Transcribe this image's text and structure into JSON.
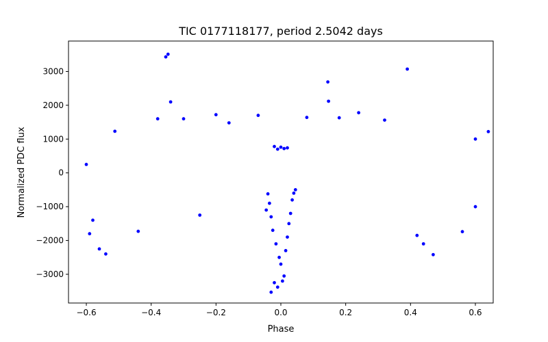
{
  "chart_data": {
    "type": "scatter",
    "title": "TIC 0177118177, period 2.5042 days",
    "xlabel": "Phase",
    "ylabel": "Normalized PDC flux",
    "xlim": [
      -0.655,
      0.655
    ],
    "ylim": [
      -3850,
      3900
    ],
    "x_ticks": [
      -0.6,
      -0.4,
      -0.2,
      0.0,
      0.2,
      0.4,
      0.6
    ],
    "x_tick_labels": [
      "−0.6",
      "−0.4",
      "−0.2",
      "0.0",
      "0.2",
      "0.4",
      "0.6"
    ],
    "y_ticks": [
      -3000,
      -2000,
      -1000,
      0,
      1000,
      2000,
      3000
    ],
    "y_tick_labels": [
      "−3000",
      "−2000",
      "−1000",
      "0",
      "1000",
      "2000",
      "3000"
    ],
    "grid": false,
    "marker_color": "#0000ff",
    "series": [
      {
        "points": [
          [
            -0.355,
            3430
          ],
          [
            -0.348,
            3510
          ],
          [
            -0.34,
            2100
          ],
          [
            0.145,
            2690
          ],
          [
            0.39,
            3070
          ],
          [
            -0.03,
            -3530
          ],
          [
            -0.01,
            -3380
          ],
          [
            0.005,
            -3200
          ],
          [
            -0.02,
            -3250
          ],
          [
            0.01,
            -3050
          ],
          [
            -0.25,
            -1250
          ],
          [
            -0.44,
            -1730
          ],
          [
            0.56,
            -1740
          ],
          [
            0.64,
            1220
          ],
          [
            -0.512,
            1230
          ],
          [
            0.147,
            2120
          ],
          [
            -0.2,
            1720
          ],
          [
            0.24,
            1780
          ],
          [
            -0.07,
            1700
          ],
          [
            0.08,
            1640
          ],
          [
            -0.38,
            1600
          ],
          [
            -0.3,
            1600
          ],
          [
            0.18,
            1630
          ],
          [
            0.32,
            1560
          ],
          [
            -0.16,
            1480
          ],
          [
            -0.02,
            780
          ],
          [
            0.0,
            760
          ],
          [
            0.02,
            740
          ],
          [
            -0.01,
            700
          ],
          [
            0.01,
            720
          ],
          [
            -0.04,
            -620
          ],
          [
            -0.035,
            -900
          ],
          [
            -0.045,
            -1100
          ],
          [
            -0.03,
            -1300
          ],
          [
            -0.025,
            -1700
          ],
          [
            -0.015,
            -2100
          ],
          [
            -0.005,
            -2500
          ],
          [
            0.0,
            -2700
          ],
          [
            0.015,
            -2300
          ],
          [
            0.02,
            -1900
          ],
          [
            0.03,
            -1200
          ],
          [
            0.035,
            -800
          ],
          [
            0.04,
            -600
          ],
          [
            0.045,
            -500
          ],
          [
            0.025,
            -1500
          ],
          [
            -0.59,
            -1800
          ],
          [
            -0.58,
            -1400
          ],
          [
            -0.56,
            -2250
          ],
          [
            -0.54,
            -2400
          ],
          [
            0.47,
            -2420
          ],
          [
            0.44,
            -2100
          ],
          [
            0.42,
            -1850
          ],
          [
            0.6,
            1000
          ],
          [
            -0.6,
            250
          ],
          [
            0.6,
            -1000
          ]
        ]
      }
    ]
  }
}
